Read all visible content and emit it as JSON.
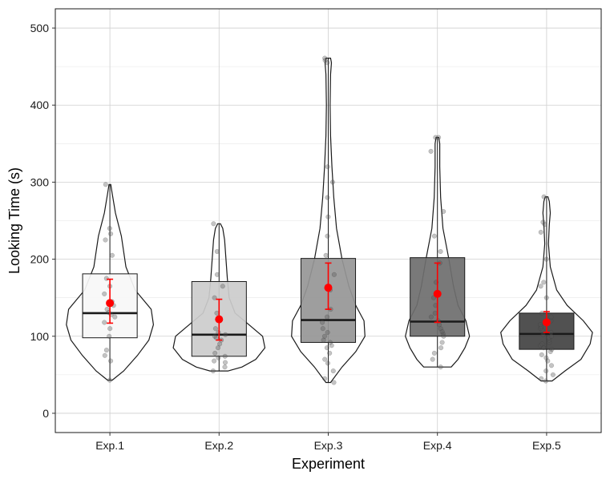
{
  "chart_data": {
    "type": "violin-box",
    "xlabel": "Experiment",
    "ylabel": "Looking Time (s)",
    "categories": [
      "Exp.1",
      "Exp.2",
      "Exp.3",
      "Exp.4",
      "Exp.5"
    ],
    "ylim": [
      -25,
      525
    ],
    "yticks": [
      0,
      100,
      200,
      300,
      400,
      500
    ],
    "grid": true,
    "colors": {
      "box_fills": [
        "#f7f7f7",
        "#cccccc",
        "#969696",
        "#6e6e6e",
        "#424242"
      ],
      "mean_marker": "#ff0000",
      "outline": "#1a1a1a",
      "grid": "#d9d9d9",
      "points": "#555555"
    },
    "boxes": [
      {
        "category": "Exp.1",
        "q1": 98,
        "median": 130,
        "q3": 181,
        "min": 43,
        "max": 297
      },
      {
        "category": "Exp.2",
        "q1": 74,
        "median": 102,
        "q3": 171,
        "min": 55,
        "max": 246
      },
      {
        "category": "Exp.3",
        "q1": 92,
        "median": 121,
        "q3": 201,
        "min": 40,
        "max": 461
      },
      {
        "category": "Exp.4",
        "q1": 100,
        "median": 119,
        "q3": 202,
        "min": 60,
        "max": 358
      },
      {
        "category": "Exp.5",
        "q1": 83,
        "median": 103,
        "q3": 130,
        "min": 42,
        "max": 281
      }
    ],
    "means": [
      {
        "category": "Exp.1",
        "mean": 143,
        "lower": 117,
        "upper": 174
      },
      {
        "category": "Exp.2",
        "mean": 122,
        "lower": 95,
        "upper": 148
      },
      {
        "category": "Exp.3",
        "mean": 163,
        "lower": 135,
        "upper": 195
      },
      {
        "category": "Exp.4",
        "mean": 155,
        "lower": 118,
        "upper": 195
      },
      {
        "category": "Exp.5",
        "mean": 118,
        "lower": 105,
        "upper": 132
      }
    ],
    "violins": [
      {
        "category": "Exp.1",
        "profile": [
          [
            43,
            0.05
          ],
          [
            55,
            0.3
          ],
          [
            75,
            0.6
          ],
          [
            95,
            0.85
          ],
          [
            115,
            0.95
          ],
          [
            135,
            0.9
          ],
          [
            160,
            0.55
          ],
          [
            190,
            0.35
          ],
          [
            230,
            0.25
          ],
          [
            260,
            0.12
          ],
          [
            285,
            0.05
          ],
          [
            297,
            0.02
          ]
        ]
      },
      {
        "category": "Exp.2",
        "profile": [
          [
            55,
            0.2
          ],
          [
            60,
            0.5
          ],
          [
            70,
            0.8
          ],
          [
            85,
            1.0
          ],
          [
            100,
            0.95
          ],
          [
            115,
            0.65
          ],
          [
            130,
            0.35
          ],
          [
            150,
            0.22
          ],
          [
            175,
            0.18
          ],
          [
            200,
            0.15
          ],
          [
            225,
            0.12
          ],
          [
            240,
            0.08
          ],
          [
            246,
            0.03
          ]
        ]
      },
      {
        "category": "Exp.3",
        "profile": [
          [
            40,
            0.05
          ],
          [
            60,
            0.3
          ],
          [
            80,
            0.6
          ],
          [
            100,
            0.8
          ],
          [
            120,
            0.78
          ],
          [
            140,
            0.6
          ],
          [
            165,
            0.45
          ],
          [
            200,
            0.3
          ],
          [
            240,
            0.18
          ],
          [
            280,
            0.12
          ],
          [
            320,
            0.08
          ],
          [
            360,
            0.05
          ],
          [
            400,
            0.04
          ],
          [
            440,
            0.05
          ],
          [
            455,
            0.07
          ],
          [
            461,
            0.05
          ]
        ]
      },
      {
        "category": "Exp.4",
        "profile": [
          [
            60,
            0.3
          ],
          [
            70,
            0.45
          ],
          [
            85,
            0.6
          ],
          [
            100,
            0.7
          ],
          [
            120,
            0.62
          ],
          [
            140,
            0.45
          ],
          [
            165,
            0.35
          ],
          [
            200,
            0.25
          ],
          [
            240,
            0.12
          ],
          [
            280,
            0.07
          ],
          [
            320,
            0.05
          ],
          [
            350,
            0.05
          ],
          [
            358,
            0.03
          ]
        ]
      },
      {
        "category": "Exp.5",
        "profile": [
          [
            42,
            0.12
          ],
          [
            55,
            0.4
          ],
          [
            70,
            0.75
          ],
          [
            90,
            0.95
          ],
          [
            105,
            1.0
          ],
          [
            120,
            0.8
          ],
          [
            140,
            0.45
          ],
          [
            160,
            0.22
          ],
          [
            190,
            0.08
          ],
          [
            220,
            0.04
          ],
          [
            245,
            0.06
          ],
          [
            260,
            0.08
          ],
          [
            275,
            0.06
          ],
          [
            281,
            0.03
          ]
        ]
      }
    ],
    "points": [
      {
        "category": "Exp.1",
        "values": [
          43,
          68,
          75,
          82,
          100,
          110,
          118,
          125,
          128,
          131,
          135,
          140,
          145,
          155,
          165,
          175,
          205,
          225,
          233,
          240,
          297
        ]
      },
      {
        "category": "Exp.2",
        "values": [
          55,
          60,
          66,
          68,
          72,
          74,
          78,
          85,
          90,
          95,
          98,
          100,
          102,
          105,
          110,
          120,
          130,
          150,
          165,
          180,
          210,
          246
        ]
      },
      {
        "category": "Exp.3",
        "values": [
          40,
          45,
          55,
          65,
          70,
          78,
          85,
          88,
          92,
          95,
          100,
          105,
          110,
          118,
          125,
          135,
          160,
          180,
          205,
          230,
          255,
          280,
          300,
          320,
          455,
          458,
          461
        ]
      },
      {
        "category": "Exp.4",
        "values": [
          60,
          70,
          78,
          85,
          92,
          100,
          103,
          106,
          110,
          115,
          120,
          125,
          130,
          140,
          150,
          170,
          195,
          210,
          230,
          262,
          340,
          358,
          358
        ]
      },
      {
        "category": "Exp.5",
        "values": [
          42,
          45,
          50,
          55,
          62,
          68,
          72,
          76,
          80,
          83,
          85,
          88,
          90,
          92,
          95,
          98,
          100,
          102,
          105,
          108,
          110,
          112,
          115,
          118,
          120,
          125,
          130,
          150,
          165,
          170,
          200,
          235,
          245,
          248,
          281
        ]
      }
    ]
  }
}
